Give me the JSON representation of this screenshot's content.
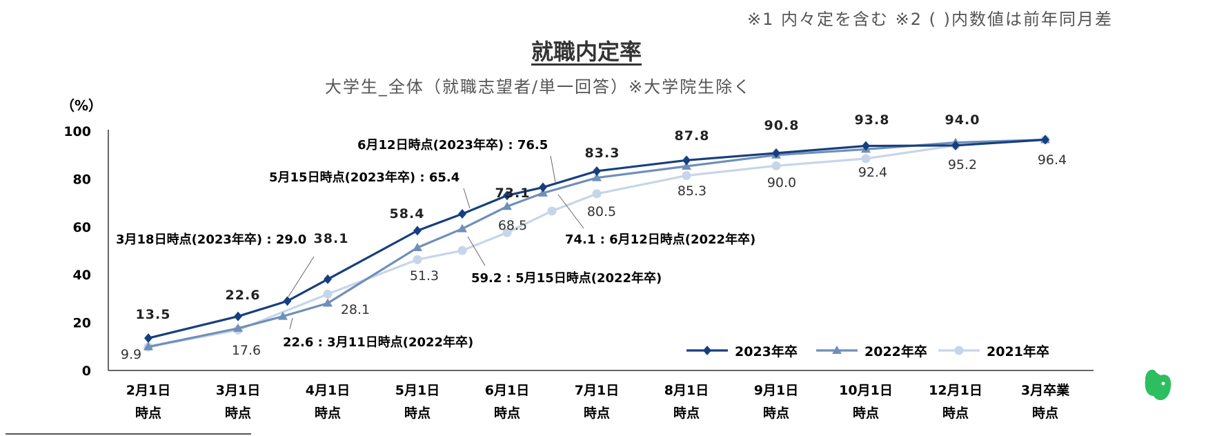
{
  "header": {
    "note": "※1 内々定を含む ※2 ( )内数値は前年同月差",
    "title": "就職内定率",
    "subtitle": "大学生_全体（就職志望者/単一回答）※大学院生除く"
  },
  "chart_data": {
    "type": "line",
    "ylabel": "（%）",
    "ylim": [
      0,
      100
    ],
    "yticks": [
      "0",
      "20",
      "40",
      "60",
      "80",
      "100"
    ],
    "categories": [
      [
        "2月1日",
        "時点"
      ],
      [
        "3月1日",
        "時点"
      ],
      [
        "4月1日",
        "時点"
      ],
      [
        "5月1日",
        "時点"
      ],
      [
        "6月1日",
        "時点"
      ],
      [
        "7月1日",
        "時点"
      ],
      [
        "8月1日",
        "時点"
      ],
      [
        "9月1日",
        "時点"
      ],
      [
        "10月1日",
        "時点"
      ],
      [
        "12月1日",
        "時点"
      ],
      [
        "3月卒業",
        "時点"
      ]
    ],
    "series": [
      {
        "name": "2023年卒",
        "color": "#163f7e",
        "marker": "diamond",
        "points": [
          {
            "x": 0,
            "y": 13.5
          },
          {
            "x": 1,
            "y": 22.6
          },
          {
            "x": 1.55,
            "y": 29.0
          },
          {
            "x": 2,
            "y": 38.1
          },
          {
            "x": 3,
            "y": 58.4
          },
          {
            "x": 3.5,
            "y": 65.4
          },
          {
            "x": 4,
            "y": 73.1
          },
          {
            "x": 4.4,
            "y": 76.5
          },
          {
            "x": 5,
            "y": 83.3
          },
          {
            "x": 6,
            "y": 87.8
          },
          {
            "x": 7,
            "y": 90.8
          },
          {
            "x": 8,
            "y": 93.8
          },
          {
            "x": 9,
            "y": 94.0
          },
          {
            "x": 10,
            "y": 96.4
          }
        ]
      },
      {
        "name": "2022年卒",
        "color": "#6f8fb9",
        "marker": "triangle",
        "points": [
          {
            "x": 0,
            "y": 9.9
          },
          {
            "x": 1,
            "y": 17.6
          },
          {
            "x": 1.5,
            "y": 22.6
          },
          {
            "x": 2,
            "y": 28.1
          },
          {
            "x": 3,
            "y": 51.3
          },
          {
            "x": 3.5,
            "y": 59.2
          },
          {
            "x": 4,
            "y": 68.5
          },
          {
            "x": 4.4,
            "y": 74.1
          },
          {
            "x": 5,
            "y": 80.5
          },
          {
            "x": 6,
            "y": 85.3
          },
          {
            "x": 7,
            "y": 90.0
          },
          {
            "x": 8,
            "y": 92.4
          },
          {
            "x": 9,
            "y": 95.2
          },
          {
            "x": 10,
            "y": 96.4
          }
        ]
      },
      {
        "name": "2021年卒",
        "color": "#c7d5e8",
        "marker": "circle",
        "points": [
          {
            "x": 0,
            "y": 9.8
          },
          {
            "x": 1,
            "y": 16.9
          },
          {
            "x": 2,
            "y": 31.9
          },
          {
            "x": 3,
            "y": 46.3
          },
          {
            "x": 3.5,
            "y": 50.1
          },
          {
            "x": 4,
            "y": 57.6
          },
          {
            "x": 4.5,
            "y": 66.6
          },
          {
            "x": 5,
            "y": 73.8
          },
          {
            "x": 6,
            "y": 81.4
          },
          {
            "x": 7,
            "y": 85.5
          },
          {
            "x": 8,
            "y": 88.5
          },
          {
            "x": 9,
            "y": 94.0
          },
          {
            "x": 10,
            "y": 96.4
          }
        ]
      }
    ],
    "data_labels": [
      {
        "text": "13.5",
        "bold": true
      },
      {
        "text": "22.6",
        "bold": true
      },
      {
        "text": "38.1",
        "bold": true
      },
      {
        "text": "58.4",
        "bold": true
      },
      {
        "text": "73.1",
        "bold": true
      },
      {
        "text": "83.3",
        "bold": true
      },
      {
        "text": "87.8",
        "bold": true
      },
      {
        "text": "90.8",
        "bold": true
      },
      {
        "text": "93.8",
        "bold": true
      },
      {
        "text": "94.0",
        "bold": true
      },
      {
        "text": "9.9",
        "bold": false
      },
      {
        "text": "17.6",
        "bold": false
      },
      {
        "text": "28.1",
        "bold": false
      },
      {
        "text": "51.3",
        "bold": false
      },
      {
        "text": "68.5",
        "bold": false
      },
      {
        "text": "80.5",
        "bold": false
      },
      {
        "text": "85.3",
        "bold": false
      },
      {
        "text": "90.0",
        "bold": false
      },
      {
        "text": "92.4",
        "bold": false
      },
      {
        "text": "95.2",
        "bold": false
      },
      {
        "text": "96.4",
        "bold": false
      }
    ],
    "annotations": [
      {
        "prefix": "3月18日時点(2023年卒) : ",
        "value": "29.0"
      },
      {
        "prefix": "5月15日時点(2023年卒) : ",
        "value": "65.4"
      },
      {
        "prefix": "6月12日時点(2023年卒) : ",
        "value": "76.5"
      },
      {
        "prefix": "22.6 : ",
        "value": "3月11日時点(2022年卒)"
      },
      {
        "prefix": "59.2 : ",
        "value": "5月15日時点(2022年卒)"
      },
      {
        "prefix": "74.1 : ",
        "value": "6月12日時点(2022年卒)"
      }
    ],
    "legend_position": "bottom-right"
  },
  "logo": {
    "name": "evernote-logo",
    "color": "#2dbe60"
  }
}
